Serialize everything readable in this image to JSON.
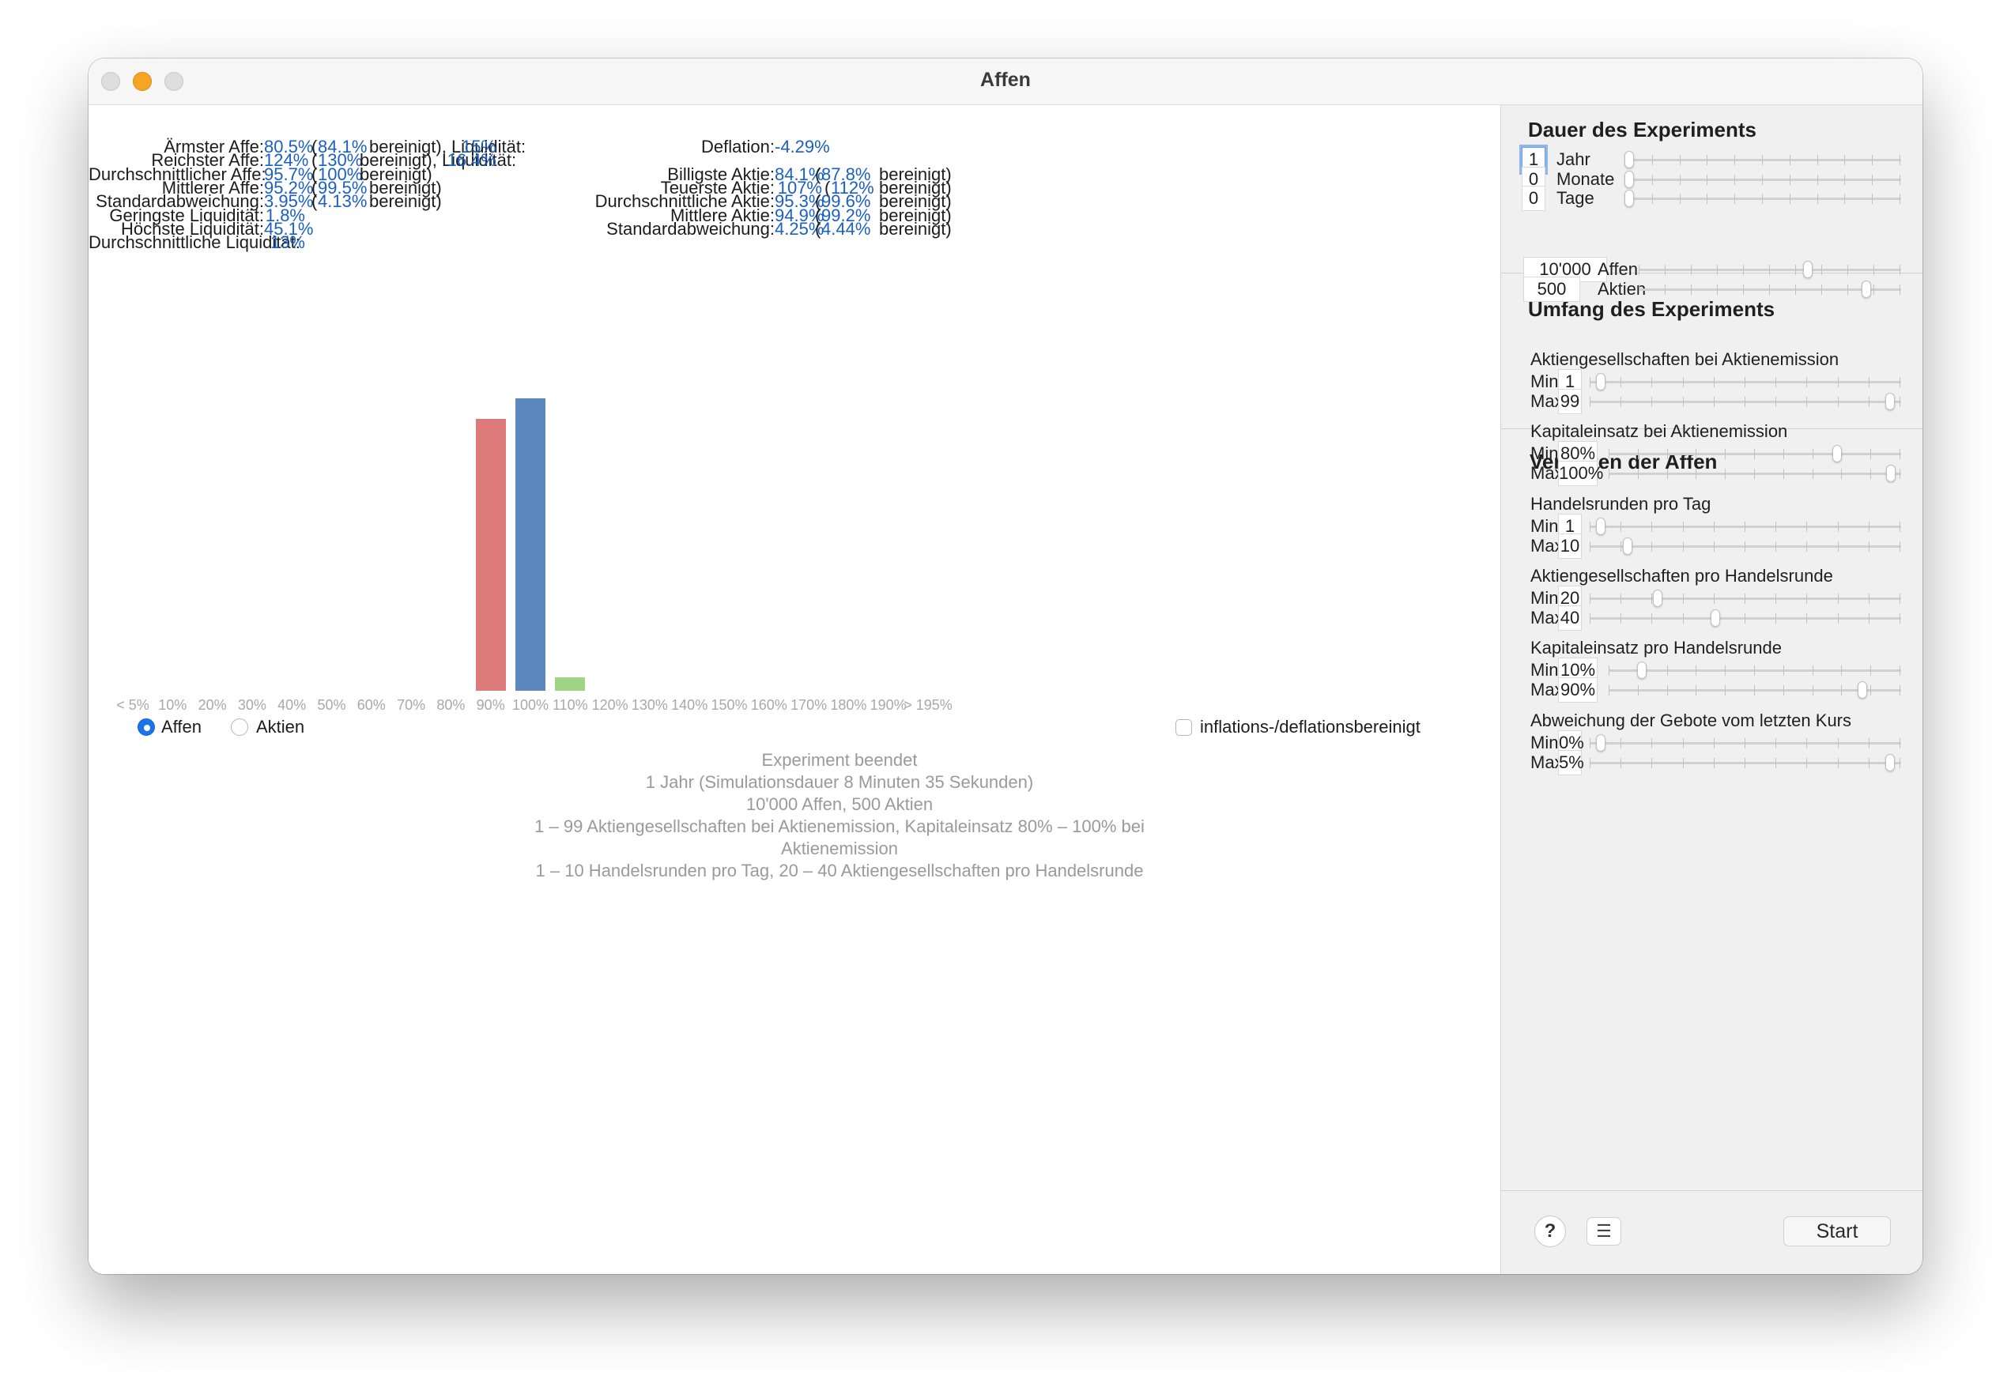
{
  "window": {
    "title": "Affen"
  },
  "stats_left": [
    {
      "label": "Ärmster Affe:",
      "v1": "80.5%",
      "pre": "(",
      "v2": "84.1%",
      "mid": "bereinigt), Liquidität:",
      "v3": "15%"
    },
    {
      "label": "Reichster Affe:",
      "v1": "124%",
      "pre": "(",
      "v2": "130%",
      "mid": "bereinigt), Liquidität:",
      "v3": "16.4%"
    },
    {
      "label": "Durchschnittlicher Affe:",
      "v1": "95.7%",
      "pre": "(",
      "v2": "100%",
      "mid": "bereinigt)",
      "v3": ""
    },
    {
      "label": "Mittlerer Affe:",
      "v1": "95.2%",
      "pre": "(",
      "v2": "99.5%",
      "mid": "bereinigt)",
      "v3": ""
    },
    {
      "label": "Standardabweichung:",
      "v1": "3.95%",
      "pre": "(",
      "v2": "4.13%",
      "mid": "bereinigt)",
      "v3": ""
    },
    {
      "label": "Geringste Liquidität:",
      "v1": "1.8%",
      "pre": "",
      "v2": "",
      "mid": "",
      "v3": ""
    },
    {
      "label": "Höchste Liquidität:",
      "v1": "45.1%",
      "pre": "",
      "v2": "",
      "mid": "",
      "v3": ""
    },
    {
      "label": "Durchschnittliche Liquidität:",
      "v1": "13%",
      "pre": "",
      "v2": "",
      "mid": "",
      "v3": ""
    }
  ],
  "deflation": {
    "label": "Deflation:",
    "value": "-4.29%"
  },
  "stats_right": [
    {
      "label": "Billigste Aktie:",
      "v1": "84.1%",
      "pre": "(",
      "v2": "87.8%",
      "mid": "bereinigt)"
    },
    {
      "label": "Teuerste Aktie:",
      "v1": "107%",
      "pre": "(",
      "v2": "112%",
      "mid": "bereinigt)"
    },
    {
      "label": "Durchschnittliche Aktie:",
      "v1": "95.3%",
      "pre": "(",
      "v2": "99.6%",
      "mid": "bereinigt)"
    },
    {
      "label": "Mittlere Aktie:",
      "v1": "94.9%",
      "pre": "(",
      "v2": "99.2%",
      "mid": "bereinigt)"
    },
    {
      "label": "Standardabweichung:",
      "v1": "4.25%",
      "pre": "(",
      "v2": "4.44%",
      "mid": "bereinigt)"
    }
  ],
  "chart_data": {
    "type": "bar",
    "categories": [
      "< 5%",
      "10%",
      "20%",
      "30%",
      "40%",
      "50%",
      "60%",
      "70%",
      "80%",
      "90%",
      "100%",
      "110%",
      "120%",
      "130%",
      "140%",
      "150%",
      "160%",
      "170%",
      "180%",
      "190%",
      "> 195%"
    ],
    "values": [
      0,
      0,
      0,
      0,
      0,
      0,
      0,
      0,
      0,
      0.82,
      0.88,
      0.04,
      0,
      0,
      0,
      0,
      0,
      0,
      0,
      0,
      0
    ],
    "bar_colors": [
      "#dd7b7b",
      "#dd7b7b",
      "#dd7b7b",
      "#dd7b7b",
      "#dd7b7b",
      "#dd7b7b",
      "#dd7b7b",
      "#dd7b7b",
      "#dd7b7b",
      "#dd7b7b",
      "#5a87bd",
      "#9fd385",
      "#9fd385",
      "#9fd385",
      "#9fd385",
      "#9fd385",
      "#9fd385",
      "#9fd385",
      "#9fd385",
      "#9fd385",
      "#9fd385"
    ],
    "ylim": [
      0,
      1
    ],
    "title": "",
    "xlabel": "",
    "ylabel": ""
  },
  "view": {
    "radio_affen": "Affen",
    "radio_aktien": "Aktien",
    "selected": "Affen",
    "checkbox_label": "inflations-/deflationsbereinigt",
    "checkbox_checked": false
  },
  "summary": {
    "line1": "Experiment beendet",
    "line2": "1 Jahr   (Simulationsdauer  8 Minuten  35 Sekunden)",
    "line3": "10'000 Affen, 500 Aktien",
    "line4": "1 – 99 Aktiengesellschaften bei Aktienemission, Kapitaleinsatz 80% – 100% bei",
    "line5": "Aktienemission",
    "line6": "1 – 10 Handelsrunden pro Tag, 20 – 40 Aktiengesellschaften pro Handelsrunde"
  },
  "sidebar": {
    "duration": {
      "title": "Dauer des Experiments",
      "years": {
        "value": "1",
        "label": "Jahr",
        "level": 0.0
      },
      "months": {
        "value": "0",
        "label": "Monate",
        "level": 0.0
      },
      "days": {
        "value": "0",
        "label": "Tage",
        "level": 0.0
      }
    },
    "scope": {
      "title": "Umfang des Experiments",
      "monkeys": {
        "value": "10'000",
        "label": "Affen",
        "level": 0.65
      },
      "stocks": {
        "value": "500",
        "label": "Aktien",
        "level": 0.88
      }
    },
    "behavior": {
      "title": "Verhalten der Affen",
      "min_label": "Min",
      "max_label": "Max",
      "groups": [
        {
          "title": "Aktiengesellschaften bei Aktienemission",
          "min": "1",
          "max": "99",
          "min_level": 0.02,
          "max_level": 0.98
        },
        {
          "title": "Kapitaleinsatz bei Aktienemission",
          "min": "80%",
          "max": "100%",
          "min_level": 0.79,
          "max_level": 0.98
        },
        {
          "title": "Handelsrunden pro Tag",
          "min": "1",
          "max": "10",
          "min_level": 0.02,
          "max_level": 0.11
        },
        {
          "title": "Aktiengesellschaften pro Handelsrunde",
          "min": "20",
          "max": "40",
          "min_level": 0.21,
          "max_level": 0.4
        },
        {
          "title": "Kapitaleinsatz pro Handelsrunde",
          "min": "10%",
          "max": "90%",
          "min_level": 0.1,
          "max_level": 0.88
        },
        {
          "title": "Abweichung der Gebote vom letzten Kurs",
          "min": "0%",
          "max": "5%",
          "min_level": 0.02,
          "max_level": 0.98
        }
      ]
    },
    "footer": {
      "help": "?",
      "list": "☰",
      "start": "Start"
    }
  }
}
